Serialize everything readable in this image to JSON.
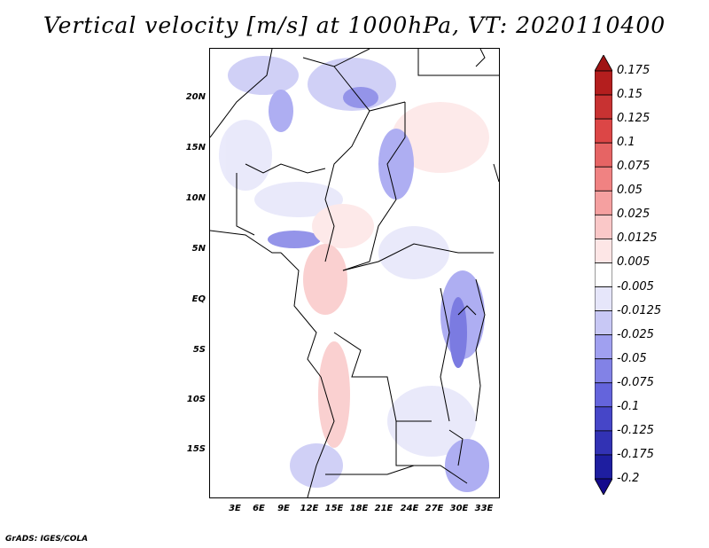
{
  "title": "Vertical velocity [m/s] at 1000hPa, VT: 2020110400",
  "credit": "GrADS: IGES/COLA",
  "map": {
    "lat_ticks": [
      "20N",
      "15N",
      "10N",
      "5N",
      "EQ",
      "5S",
      "10S",
      "15S"
    ],
    "lon_ticks": [
      "3E",
      "6E",
      "9E",
      "12E",
      "15E",
      "18E",
      "21E",
      "24E",
      "27E",
      "30E",
      "33E"
    ]
  },
  "colorbar": {
    "labels": [
      "0.175",
      "0.15",
      "0.125",
      "0.1",
      "0.075",
      "0.05",
      "0.025",
      "0.0125",
      "0.005",
      "-0.005",
      "-0.0125",
      "-0.025",
      "-0.05",
      "-0.075",
      "-0.1",
      "-0.125",
      "-0.175",
      "-0.2"
    ],
    "colors": [
      "#a01414",
      "#b41e1e",
      "#c83232",
      "#dc4646",
      "#e66464",
      "#f08282",
      "#f5a0a0",
      "#fac8c8",
      "#fde6e6",
      "#ffffff",
      "#e6e6fa",
      "#c8c8f5",
      "#a0a0f0",
      "#8282e6",
      "#6464dc",
      "#4646c8",
      "#3232b4",
      "#1e1ea0",
      "#140a8c"
    ]
  }
}
